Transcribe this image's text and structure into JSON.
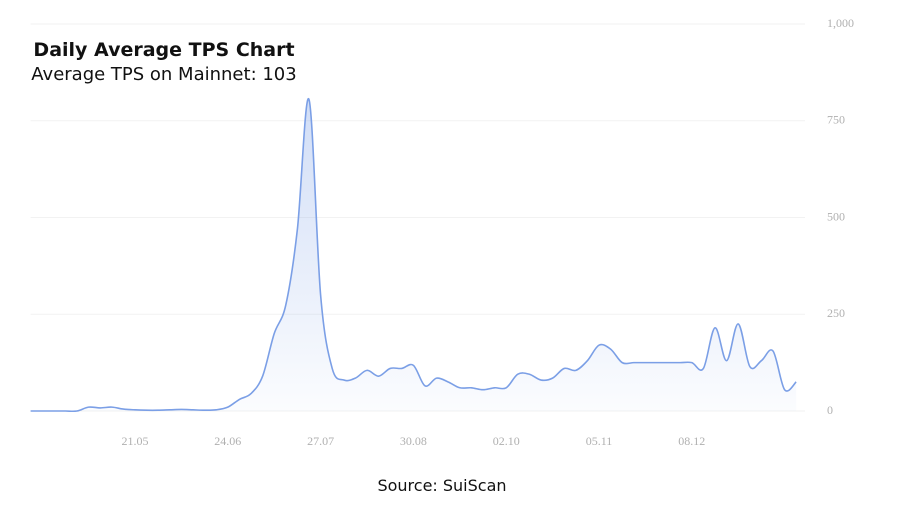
{
  "chart_data": {
    "type": "area",
    "title": "Daily Average TPS Chart",
    "subtitle": "Average TPS on Mainnet: 103",
    "source": "Source: SuiScan",
    "categories": [
      null,
      null,
      null,
      null,
      null,
      null,
      null,
      null,
      null,
      "21.05",
      null,
      null,
      null,
      null,
      null,
      null,
      null,
      "24.06",
      null,
      null,
      null,
      null,
      null,
      null,
      null,
      "27.07",
      null,
      null,
      null,
      null,
      null,
      null,
      null,
      "30.08",
      null,
      null,
      null,
      null,
      null,
      null,
      null,
      "02.10",
      null,
      null,
      null,
      null,
      null,
      null,
      null,
      "05.11",
      null,
      null,
      null,
      null,
      null,
      null,
      null,
      "08.12",
      null,
      null,
      null,
      null,
      null,
      null,
      null,
      null,
      null
    ],
    "series": [
      {
        "color": "#7b9fe6",
        "values": [
          0,
          0,
          0,
          0,
          0,
          10,
          8,
          10,
          5,
          3,
          2,
          2,
          3,
          4,
          3,
          2,
          3,
          10,
          30,
          45,
          90,
          200,
          274,
          470,
          805,
          300,
          110,
          80,
          85,
          105,
          90,
          110,
          110,
          118,
          65,
          85,
          75,
          60,
          60,
          55,
          60,
          60,
          95,
          95,
          80,
          85,
          110,
          105,
          130,
          170,
          160,
          125,
          125,
          125,
          125,
          125,
          125,
          125,
          110,
          215,
          130,
          225,
          115,
          130,
          155,
          55,
          75
        ]
      }
    ],
    "ylim": [
      0,
      1000
    ],
    "yticks": [
      0,
      250,
      500,
      750,
      {
        "value": 1000,
        "label": "1,000"
      }
    ],
    "grid": true
  }
}
